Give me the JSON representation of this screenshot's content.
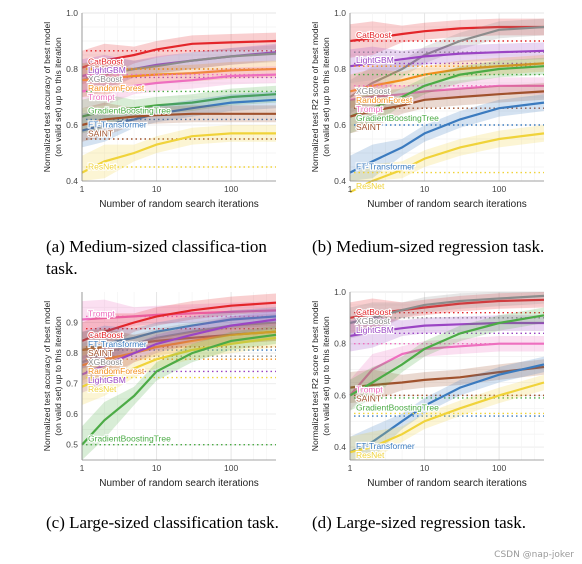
{
  "figure": {
    "watermark": "CSDN @nap-joker",
    "captions": [
      {
        "tag": "(a)",
        "text": "Medium-sized classifica-tion task."
      },
      {
        "tag": "(b)",
        "text": "Medium-sized regression task."
      },
      {
        "tag": "(c)",
        "text": "Large-sized classification task."
      },
      {
        "tag": "(d)",
        "text": "Large-sized regression task."
      }
    ]
  },
  "colors": {
    "CatBoost": "#e3262a",
    "LightGBM": "#9b45c4",
    "XGBoost": "#8c8c8c",
    "RandomForest": "#f28e1c",
    "Trompt": "#ee6fbf",
    "GradientBoostingTree": "#4cab46",
    "FT_Transformer": "#3b7bbf",
    "SAINT": "#a0522d",
    "ResNet": "#f0d33a"
  },
  "chart_data": [
    {
      "type": "line",
      "xlabel": "Number of random search iterations",
      "ylabel": "Normalized test accuracy of best model (on valid set) up to this iteration",
      "xscale": "log",
      "xlim": [
        1,
        400
      ],
      "ylim": [
        0.4,
        1.0
      ],
      "xticks": [
        "1",
        "10",
        "100"
      ],
      "yticks": [
        "0.4",
        "0.6",
        "0.8",
        "1.0"
      ],
      "grid": true,
      "series": [
        {
          "name": "CatBoost",
          "x": [
            1,
            2,
            5,
            10,
            30,
            100,
            400
          ],
          "y": [
            0.805,
            0.83,
            0.85,
            0.87,
            0.89,
            0.895,
            0.9
          ],
          "final": 0.865
        },
        {
          "name": "LightGBM",
          "x": [
            1,
            2,
            5,
            10,
            30,
            100,
            400
          ],
          "y": [
            0.775,
            0.79,
            0.8,
            0.815,
            0.83,
            0.845,
            0.86
          ],
          "final": 0.77
        },
        {
          "name": "XGBoost",
          "x": [
            1,
            2,
            5,
            10,
            30,
            100,
            400
          ],
          "y": [
            0.76,
            0.78,
            0.8,
            0.81,
            0.83,
            0.845,
            0.855
          ],
          "final": 0.8
        },
        {
          "name": "RandomForest",
          "x": [
            1,
            2,
            5,
            10,
            30,
            100,
            400
          ],
          "y": [
            0.76,
            0.765,
            0.775,
            0.78,
            0.785,
            0.795,
            0.8
          ],
          "final": 0.8
        },
        {
          "name": "Trompt",
          "x": [
            1,
            2,
            5,
            10,
            30,
            100,
            400
          ],
          "y": [
            0.72,
            0.73,
            0.74,
            0.75,
            0.76,
            0.775,
            0.78
          ],
          "final": 0.78
        },
        {
          "name": "GradientBoostingTree",
          "x": [
            1,
            2,
            5,
            10,
            30,
            100,
            400
          ],
          "y": [
            0.63,
            0.65,
            0.66,
            0.67,
            0.68,
            0.7,
            0.71
          ],
          "final": 0.72
        },
        {
          "name": "FT_Transformer",
          "label": "FT-Transformer",
          "x": [
            1,
            2,
            5,
            10,
            30,
            100,
            400
          ],
          "y": [
            0.58,
            0.6,
            0.62,
            0.64,
            0.66,
            0.68,
            0.69
          ],
          "final": 0.62
        },
        {
          "name": "SAINT",
          "x": [
            1,
            2,
            5,
            10,
            30,
            100,
            400
          ],
          "y": [
            0.6,
            0.62,
            0.63,
            0.635,
            0.64,
            0.64,
            0.64
          ],
          "final": 0.55
        },
        {
          "name": "ResNet",
          "x": [
            1,
            2,
            5,
            10,
            30,
            100,
            400
          ],
          "y": [
            0.43,
            0.47,
            0.5,
            0.53,
            0.56,
            0.57,
            0.57
          ],
          "final": 0.45
        }
      ]
    },
    {
      "type": "line",
      "xlabel": "Number of random search iterations",
      "ylabel": "Normalized test R2 score of best model (on valid set) up to this iteration",
      "xscale": "log",
      "xlim": [
        1,
        400
      ],
      "ylim": [
        0.4,
        1.0
      ],
      "xticks": [
        "1",
        "10",
        "100"
      ],
      "yticks": [
        "0.4",
        "0.6",
        "0.8",
        "1.0"
      ],
      "grid": true,
      "series": [
        {
          "name": "CatBoost",
          "x": [
            1,
            2,
            5,
            10,
            30,
            100,
            400
          ],
          "y": [
            0.9,
            0.91,
            0.925,
            0.935,
            0.945,
            0.95,
            0.95
          ],
          "final": 0.9
        },
        {
          "name": "XGBoost",
          "x": [
            1,
            2,
            5,
            10,
            30,
            100,
            400
          ],
          "y": [
            0.7,
            0.75,
            0.8,
            0.85,
            0.9,
            0.94,
            0.95
          ],
          "final": 0.86
        },
        {
          "name": "LightGBM",
          "x": [
            1,
            2,
            5,
            10,
            30,
            100,
            400
          ],
          "y": [
            0.81,
            0.82,
            0.835,
            0.845,
            0.855,
            0.86,
            0.865
          ],
          "final": 0.82
        },
        {
          "name": "RandomForest",
          "x": [
            1,
            2,
            5,
            10,
            30,
            100,
            400
          ],
          "y": [
            0.72,
            0.74,
            0.76,
            0.78,
            0.8,
            0.81,
            0.82
          ],
          "final": 0.81
        },
        {
          "name": "Trompt",
          "x": [
            1,
            2,
            5,
            10,
            30,
            100,
            400
          ],
          "y": [
            0.69,
            0.7,
            0.71,
            0.72,
            0.73,
            0.74,
            0.74
          ],
          "final": 0.74
        },
        {
          "name": "GradientBoostingTree",
          "x": [
            1,
            2,
            5,
            10,
            30,
            100,
            400
          ],
          "y": [
            0.63,
            0.66,
            0.7,
            0.74,
            0.78,
            0.8,
            0.81
          ],
          "final": 0.78
        },
        {
          "name": "SAINT",
          "x": [
            1,
            2,
            5,
            10,
            30,
            100,
            400
          ],
          "y": [
            0.63,
            0.65,
            0.67,
            0.69,
            0.7,
            0.71,
            0.72
          ],
          "final": 0.66
        },
        {
          "name": "FT_Transformer",
          "label": "FT-Transformer",
          "x": [
            1,
            2,
            5,
            10,
            30,
            100,
            400
          ],
          "y": [
            0.43,
            0.47,
            0.52,
            0.57,
            0.62,
            0.66,
            0.68
          ],
          "final": 0.6
        },
        {
          "name": "ResNet",
          "x": [
            1,
            2,
            5,
            10,
            30,
            100,
            400
          ],
          "y": [
            0.36,
            0.4,
            0.44,
            0.48,
            0.52,
            0.55,
            0.57
          ],
          "final": 0.43
        }
      ]
    },
    {
      "type": "line",
      "xlabel": "Number of random search iterations",
      "ylabel": "Normalized test accuracy of best model (on valid set) up to this iteration",
      "xscale": "log",
      "xlim": [
        1,
        400
      ],
      "ylim": [
        0.45,
        1.0
      ],
      "xticks": [
        "1",
        "10",
        "100"
      ],
      "yticks": [
        "0.5",
        "0.6",
        "0.7",
        "0.8",
        "0.9"
      ],
      "grid": true,
      "series": [
        {
          "name": "Trompt",
          "x": [
            1,
            2,
            5,
            10,
            30,
            100,
            400
          ],
          "y": [
            0.91,
            0.915,
            0.92,
            0.925,
            0.93,
            0.935,
            0.94
          ],
          "final": 0.92
        },
        {
          "name": "CatBoost",
          "x": [
            1,
            2,
            5,
            10,
            30,
            100,
            400
          ],
          "y": [
            0.84,
            0.87,
            0.9,
            0.92,
            0.94,
            0.955,
            0.965
          ],
          "final": 0.88
        },
        {
          "name": "FT_Transformer",
          "label": "FT-Transformer",
          "x": [
            1,
            2,
            5,
            10,
            30,
            100,
            400
          ],
          "y": [
            0.81,
            0.83,
            0.85,
            0.87,
            0.89,
            0.91,
            0.92
          ],
          "final": 0.81
        },
        {
          "name": "SAINT",
          "x": [
            1,
            2,
            5,
            10,
            30,
            100,
            400
          ],
          "y": [
            0.81,
            0.82,
            0.83,
            0.84,
            0.85,
            0.86,
            0.87
          ],
          "final": 0.82
        },
        {
          "name": "XGBoost",
          "x": [
            1,
            2,
            5,
            10,
            30,
            100,
            400
          ],
          "y": [
            0.77,
            0.8,
            0.83,
            0.85,
            0.87,
            0.89,
            0.9
          ],
          "final": 0.79
        },
        {
          "name": "RandomForest",
          "x": [
            1,
            2,
            5,
            10,
            30,
            100,
            400
          ],
          "y": [
            0.76,
            0.78,
            0.8,
            0.82,
            0.84,
            0.86,
            0.87
          ],
          "final": 0.78
        },
        {
          "name": "LightGBM",
          "x": [
            1,
            2,
            5,
            10,
            30,
            100,
            400
          ],
          "y": [
            0.73,
            0.76,
            0.8,
            0.83,
            0.86,
            0.89,
            0.91
          ],
          "final": 0.74
        },
        {
          "name": "ResNet",
          "x": [
            1,
            2,
            5,
            10,
            30,
            100,
            400
          ],
          "y": [
            0.69,
            0.72,
            0.75,
            0.78,
            0.81,
            0.83,
            0.85
          ],
          "final": 0.72
        },
        {
          "name": "GradientBoostingTree",
          "x": [
            1,
            2,
            5,
            10,
            30,
            100,
            400
          ],
          "y": [
            0.5,
            0.58,
            0.66,
            0.74,
            0.8,
            0.84,
            0.86
          ],
          "final": 0.5
        }
      ]
    },
    {
      "type": "line",
      "xlabel": "Number of random search iterations",
      "ylabel": "Normalized test R2 score of best model (on valid set) up to this iteration",
      "xscale": "log",
      "xlim": [
        1,
        400
      ],
      "ylim": [
        0.35,
        1.0
      ],
      "xticks": [
        "1",
        "10",
        "100"
      ],
      "yticks": [
        "0.4",
        "0.6",
        "0.8",
        "1.0"
      ],
      "grid": true,
      "series": [
        {
          "name": "CatBoost",
          "x": [
            1,
            2,
            5,
            10,
            30,
            100,
            400
          ],
          "y": [
            0.9,
            0.915,
            0.93,
            0.94,
            0.955,
            0.965,
            0.97
          ],
          "final": 0.92
        },
        {
          "name": "XGBoost",
          "x": [
            1,
            2,
            5,
            10,
            30,
            100,
            400
          ],
          "y": [
            0.88,
            0.9,
            0.93,
            0.95,
            0.965,
            0.975,
            0.985
          ],
          "final": 0.9
        },
        {
          "name": "LightGBM",
          "x": [
            1,
            2,
            5,
            10,
            30,
            100,
            400
          ],
          "y": [
            0.83,
            0.845,
            0.86,
            0.87,
            0.875,
            0.88,
            0.88
          ],
          "final": 0.84
        },
        {
          "name": "Trompt",
          "x": [
            1,
            2,
            5,
            10,
            30,
            100,
            400
          ],
          "y": [
            0.6,
            0.7,
            0.76,
            0.78,
            0.79,
            0.8,
            0.8
          ],
          "final": 0.8
        },
        {
          "name": "SAINT",
          "x": [
            1,
            2,
            5,
            10,
            30,
            100,
            400
          ],
          "y": [
            0.63,
            0.64,
            0.65,
            0.66,
            0.67,
            0.69,
            0.71
          ],
          "final": 0.6
        },
        {
          "name": "GradientBoostingTree",
          "x": [
            1,
            2,
            5,
            10,
            30,
            100,
            400
          ],
          "y": [
            0.6,
            0.65,
            0.72,
            0.78,
            0.84,
            0.88,
            0.91
          ],
          "final": 0.59
        },
        {
          "name": "FT_Transformer",
          "label": "FT-Transformer",
          "x": [
            1,
            2,
            5,
            10,
            30,
            100,
            400
          ],
          "y": [
            0.38,
            0.42,
            0.5,
            0.56,
            0.63,
            0.68,
            0.72
          ],
          "final": 0.52
        },
        {
          "name": "ResNet",
          "x": [
            1,
            2,
            5,
            10,
            30,
            100,
            400
          ],
          "y": [
            0.38,
            0.4,
            0.45,
            0.5,
            0.55,
            0.6,
            0.65
          ],
          "final": 0.53
        }
      ]
    }
  ]
}
